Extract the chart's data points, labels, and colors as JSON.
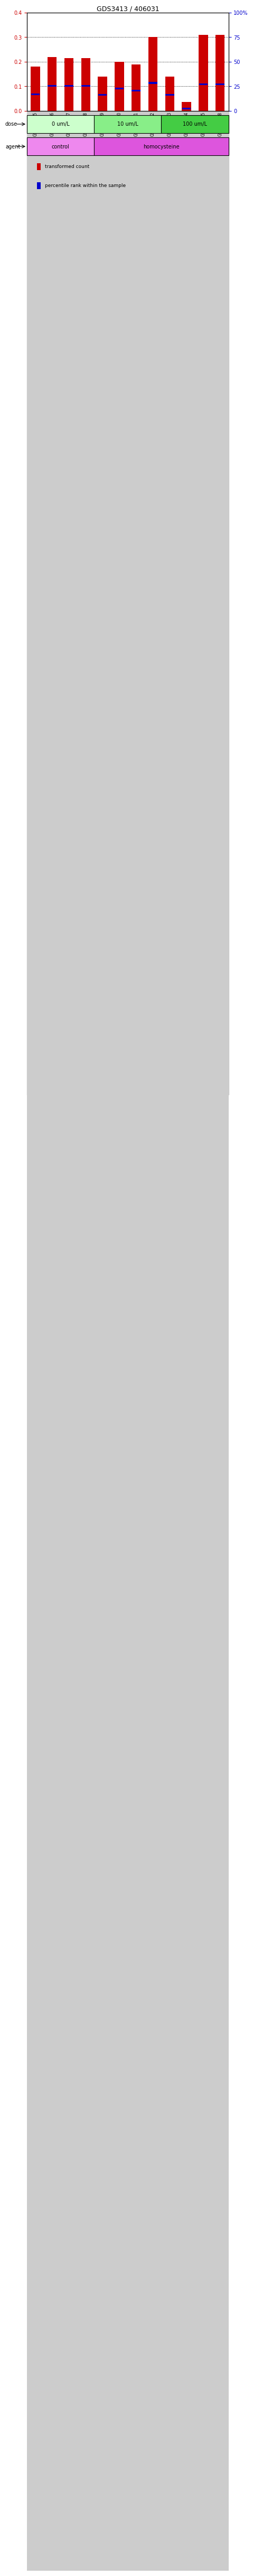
{
  "title": "GDS3413 / 406031",
  "samples": [
    "GSM240525",
    "GSM240526",
    "GSM240527",
    "GSM240528",
    "GSM240529",
    "GSM240530",
    "GSM240531",
    "GSM240532",
    "GSM240533",
    "GSM240534",
    "GSM240535",
    "GSM240848"
  ],
  "transformed_count": [
    0.18,
    0.22,
    0.215,
    0.215,
    0.14,
    0.2,
    0.19,
    0.3,
    0.14,
    0.037,
    0.31,
    0.31
  ],
  "percentile_rank": [
    0.068,
    0.102,
    0.102,
    0.102,
    0.065,
    0.091,
    0.082,
    0.114,
    0.065,
    0.01,
    0.109,
    0.109
  ],
  "bar_color": "#cc0000",
  "percentile_color": "#0000cc",
  "ylim_left": [
    0,
    0.4
  ],
  "ylim_right": [
    0,
    100
  ],
  "yticks_left": [
    0,
    0.1,
    0.2,
    0.3,
    0.4
  ],
  "yticks_right": [
    0,
    25,
    50,
    75,
    100
  ],
  "ytick_labels_right": [
    "0",
    "25",
    "50",
    "75",
    "100%"
  ],
  "dose_groups": [
    {
      "label": "0 um/L",
      "start": 0,
      "end": 4,
      "color": "#ccffcc"
    },
    {
      "label": "10 um/L",
      "start": 4,
      "end": 8,
      "color": "#88ee88"
    },
    {
      "label": "100 um/L",
      "start": 8,
      "end": 12,
      "color": "#44cc44"
    }
  ],
  "agent_groups": [
    {
      "label": "control",
      "start": 0,
      "end": 4,
      "color": "#ee88ee"
    },
    {
      "label": "homocysteine",
      "start": 4,
      "end": 12,
      "color": "#dd55dd"
    }
  ],
  "dose_label": "dose",
  "agent_label": "agent",
  "legend_items": [
    {
      "color": "#cc0000",
      "label": "transformed count"
    },
    {
      "color": "#0000cc",
      "label": "percentile rank within the sample"
    }
  ],
  "bar_width": 0.55,
  "tick_label_color_left": "#cc0000",
  "tick_label_color_right": "#0000cc",
  "xtick_bg_color": "#cccccc",
  "background_plot": "#ffffff",
  "background_fig": "#ffffff",
  "title_fontsize": 9,
  "axis_fontsize": 7,
  "xtick_fontsize": 5.5,
  "legend_fontsize": 6.5
}
